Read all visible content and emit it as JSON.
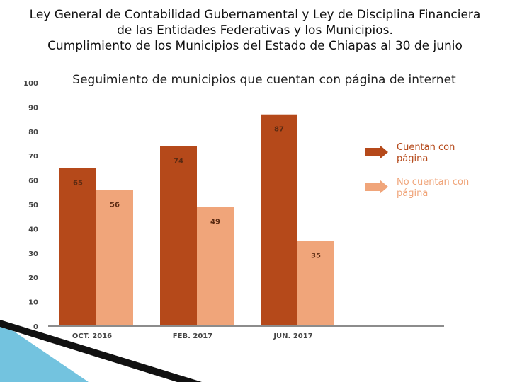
{
  "header": {
    "line1": "Ley General de Contabilidad Gubernamental y Ley de Disciplina Financiera",
    "line2": "de las Entidades Federativas y los Municipios.",
    "line3": "Cumplimiento de los Municipios del Estado de Chiapas al 30 de junio"
  },
  "colors": {
    "series_with": "#b5491a",
    "series_without": "#f0a57a",
    "axis": "#8c8c8c",
    "accent_blue": "#5bb8d9"
  },
  "chart_data": {
    "type": "bar",
    "title": "Seguimiento de municipios que cuentan con página de internet",
    "categories": [
      "OCT. 2016",
      "FEB. 2017",
      "JUN. 2017"
    ],
    "series": [
      {
        "name": "Cuentan con página",
        "values": [
          65,
          74,
          87
        ]
      },
      {
        "name": "No cuentan con página",
        "values": [
          56,
          49,
          35
        ]
      }
    ],
    "ylim": [
      0,
      100
    ],
    "yticks": [
      "0",
      "10",
      "20",
      "30",
      "40",
      "50",
      "60",
      "70",
      "80",
      "90",
      "100"
    ],
    "data_labels": [
      [
        "65",
        "74",
        "87"
      ],
      [
        "56",
        "49",
        "35"
      ]
    ],
    "legend": [
      "Cuentan con página",
      "No cuentan con página"
    ],
    "legend_position": "right",
    "grid": false
  }
}
